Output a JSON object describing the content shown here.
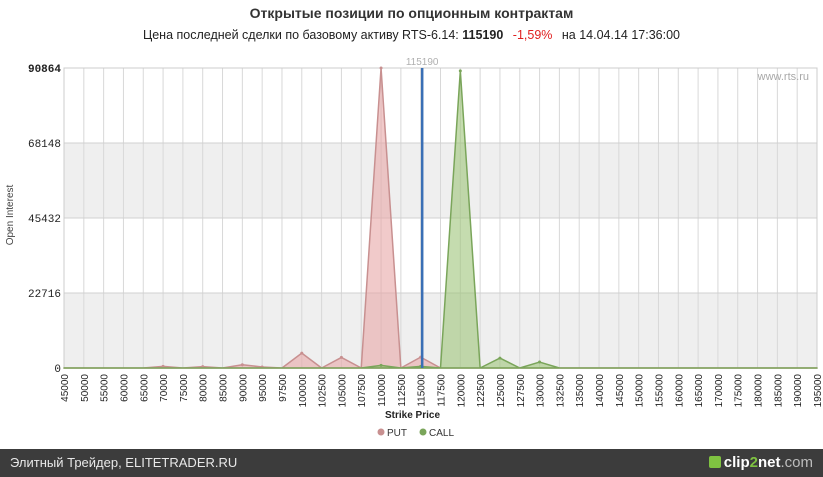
{
  "header": {
    "title": "Открытые позиции по опционным контрактам",
    "sub_prefix": "Цена последней сделки по базовому активу RTS-6.14:",
    "price": "115190",
    "change": "-1,59%",
    "date_text": "на 14.04.14 17:36:00"
  },
  "watermark": "www.rts.ru",
  "footer": {
    "text": "Элитный Трейдер, ELITETRADER.RU",
    "logo_a": "clip",
    "logo_b": "2",
    "logo_c": "net",
    "logo_d": ".com"
  },
  "chart_data": {
    "type": "area",
    "xlabel": "Strike Price",
    "ylabel": "Open Interest",
    "x": [
      45000,
      50000,
      55000,
      60000,
      65000,
      70000,
      75000,
      80000,
      85000,
      90000,
      95000,
      97500,
      100000,
      102500,
      105000,
      107500,
      110000,
      112500,
      115000,
      117500,
      120000,
      122500,
      125000,
      127500,
      130000,
      132500,
      135000,
      140000,
      145000,
      150000,
      155000,
      160000,
      165000,
      170000,
      175000,
      180000,
      185000,
      190000,
      195000
    ],
    "xlim": [
      45000,
      195000
    ],
    "ylim": [
      0,
      90864
    ],
    "yticks": [
      0,
      22716,
      45432,
      68148,
      90864
    ],
    "grid": true,
    "bands": true,
    "current_price": 115190,
    "current_price_label": "115190",
    "legend_position": "bottom",
    "series": [
      {
        "name": "PUT",
        "color": "#e8a6a6",
        "line": "#c89090",
        "values": [
          0,
          0,
          0,
          0,
          0,
          500,
          0,
          400,
          0,
          1000,
          300,
          0,
          4500,
          0,
          3200,
          0,
          90864,
          0,
          3300,
          0,
          0,
          0,
          0,
          0,
          0,
          0,
          0,
          0,
          0,
          0,
          0,
          0,
          0,
          0,
          0,
          0,
          0,
          0,
          0
        ]
      },
      {
        "name": "CALL",
        "color": "#9fc47a",
        "line": "#7aa55a",
        "values": [
          0,
          0,
          0,
          0,
          0,
          0,
          0,
          0,
          0,
          0,
          0,
          0,
          0,
          0,
          0,
          0,
          800,
          0,
          500,
          0,
          90000,
          0,
          3000,
          0,
          1800,
          0,
          0,
          0,
          0,
          0,
          0,
          0,
          0,
          0,
          0,
          0,
          0,
          0,
          0
        ]
      }
    ]
  }
}
